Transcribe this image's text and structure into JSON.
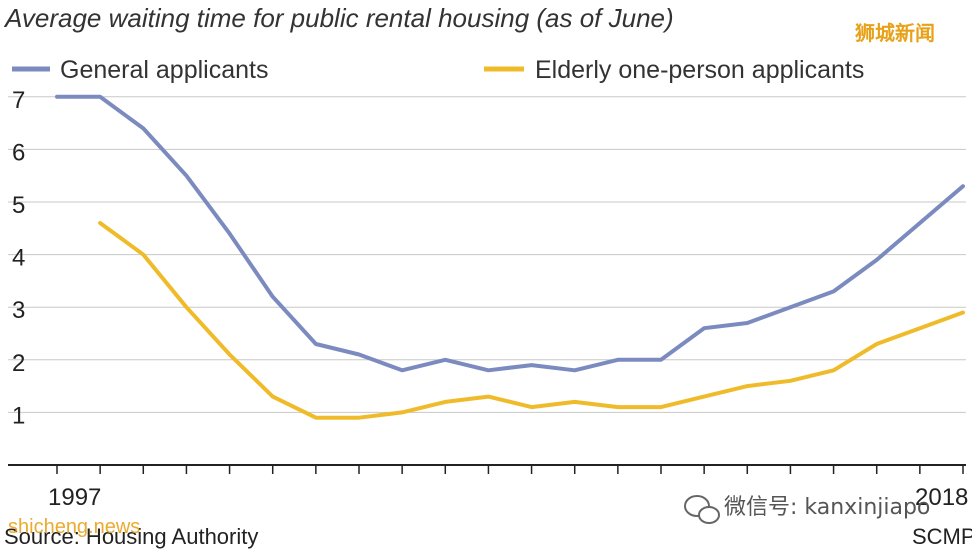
{
  "chart_data": {
    "type": "line",
    "title": "Average waiting time for public rental housing (as of June)",
    "x": [
      1997,
      1998,
      1999,
      2000,
      2001,
      2002,
      2003,
      2004,
      2005,
      2006,
      2007,
      2008,
      2009,
      2010,
      2011,
      2012,
      2013,
      2014,
      2015,
      2016,
      2017,
      2018
    ],
    "x_tick_labels": [
      "1997",
      "2018"
    ],
    "y_ticks": [
      1,
      2,
      3,
      4,
      5,
      6,
      7
    ],
    "ylim": [
      0,
      7.5
    ],
    "grid": true,
    "legend_position": "top",
    "series": [
      {
        "name": "General applicants",
        "color": "#7c8bbf",
        "values": [
          7.0,
          7.0,
          6.4,
          5.5,
          4.4,
          3.2,
          2.3,
          2.1,
          1.8,
          2.0,
          1.8,
          1.9,
          1.8,
          2.0,
          2.0,
          2.6,
          2.7,
          3.0,
          3.3,
          3.9,
          4.6,
          5.3
        ]
      },
      {
        "name": "Elderly one-person applicants",
        "color": "#f0bb2b",
        "values": [
          null,
          4.6,
          4.0,
          3.0,
          2.1,
          1.3,
          0.9,
          0.9,
          1.0,
          1.2,
          1.3,
          1.1,
          1.2,
          1.1,
          1.1,
          1.3,
          1.5,
          1.6,
          1.8,
          2.3,
          2.6,
          2.9
        ]
      }
    ]
  },
  "source_text": "Source: Housing Authority",
  "credit_text": "SCMP",
  "watermarks": {
    "top_right": "狮城新闻",
    "bottom_right": "微信号: kanxinjiapo",
    "bottom_left": "shicheng.news"
  }
}
